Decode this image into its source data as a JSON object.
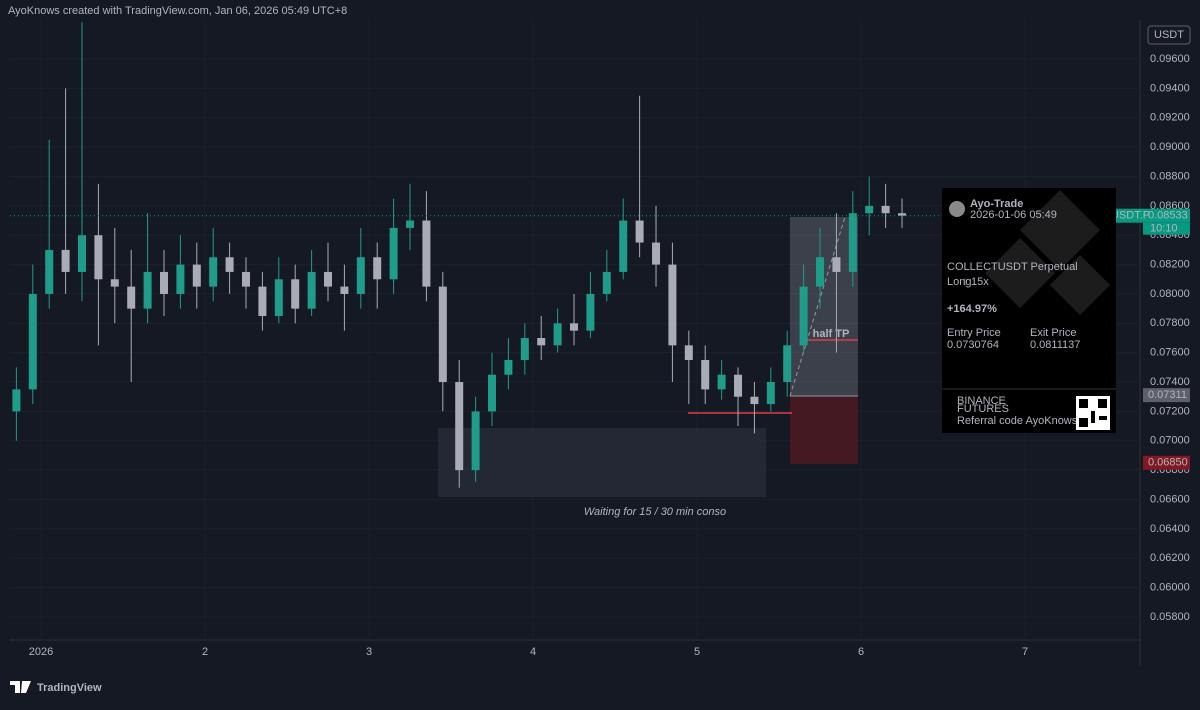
{
  "header": {
    "caption": "AyoKnows created with TradingView.com, Jan 06, 2026 05:49 UTC+8",
    "currency": "USDT"
  },
  "chart_data": {
    "type": "candlestick",
    "x": [
      0.85,
      0.95,
      1.05,
      1.15,
      1.25,
      1.35,
      1.45,
      1.55,
      1.65,
      1.75,
      1.85,
      1.95,
      2.05,
      2.15,
      2.25,
      2.35,
      2.45,
      2.55,
      2.65,
      2.75,
      2.85,
      2.95,
      3.05,
      3.15,
      3.25,
      3.35,
      3.45,
      3.55,
      3.65,
      3.75,
      3.85,
      3.95,
      4.05,
      4.15,
      4.25,
      4.35,
      4.45,
      4.55,
      4.65,
      4.75,
      4.85,
      4.95,
      5.05,
      5.15,
      5.25,
      5.35,
      5.45,
      5.55,
      5.65,
      5.75,
      5.85,
      5.95,
      6.05,
      6.15,
      6.25
    ],
    "open": [
      0.072,
      0.0735,
      0.08,
      0.083,
      0.0815,
      0.084,
      0.081,
      0.0805,
      0.079,
      0.0815,
      0.08,
      0.082,
      0.0805,
      0.0825,
      0.0815,
      0.0805,
      0.0785,
      0.081,
      0.079,
      0.0815,
      0.0805,
      0.08,
      0.0825,
      0.081,
      0.0845,
      0.085,
      0.0805,
      0.074,
      0.068,
      0.072,
      0.0745,
      0.0755,
      0.077,
      0.0765,
      0.078,
      0.0775,
      0.08,
      0.0815,
      0.085,
      0.0835,
      0.082,
      0.0765,
      0.0755,
      0.0735,
      0.0745,
      0.073,
      0.0725,
      0.074,
      0.0765,
      0.0805,
      0.0825,
      0.0815,
      0.0855,
      0.086,
      0.0855
    ],
    "high": [
      0.075,
      0.082,
      0.0905,
      0.094,
      0.0985,
      0.0875,
      0.0845,
      0.083,
      0.0855,
      0.083,
      0.084,
      0.0835,
      0.0845,
      0.0835,
      0.0825,
      0.0815,
      0.0825,
      0.082,
      0.083,
      0.0835,
      0.082,
      0.0845,
      0.0835,
      0.0865,
      0.0875,
      0.087,
      0.0815,
      0.0755,
      0.073,
      0.076,
      0.077,
      0.078,
      0.0785,
      0.079,
      0.08,
      0.0815,
      0.083,
      0.0865,
      0.0935,
      0.086,
      0.0835,
      0.0775,
      0.0765,
      0.0755,
      0.075,
      0.074,
      0.075,
      0.0775,
      0.082,
      0.0845,
      0.0855,
      0.087,
      0.088,
      0.0875,
      0.0865
    ],
    "low": [
      0.07,
      0.0725,
      0.079,
      0.08,
      0.0795,
      0.0765,
      0.078,
      0.074,
      0.078,
      0.0785,
      0.079,
      0.079,
      0.0795,
      0.08,
      0.079,
      0.0775,
      0.078,
      0.078,
      0.0785,
      0.0795,
      0.0775,
      0.079,
      0.079,
      0.08,
      0.083,
      0.0795,
      0.072,
      0.0668,
      0.0672,
      0.071,
      0.0735,
      0.0745,
      0.0755,
      0.076,
      0.0765,
      0.077,
      0.0795,
      0.081,
      0.0825,
      0.0805,
      0.074,
      0.0725,
      0.0725,
      0.0728,
      0.071,
      0.0705,
      0.072,
      0.073,
      0.076,
      0.079,
      0.076,
      0.0805,
      0.084,
      0.0845,
      0.0845
    ],
    "close": [
      0.0735,
      0.08,
      0.083,
      0.0815,
      0.084,
      0.081,
      0.0805,
      0.079,
      0.0815,
      0.08,
      0.082,
      0.0805,
      0.0825,
      0.0815,
      0.0805,
      0.0785,
      0.081,
      0.079,
      0.0815,
      0.0805,
      0.08,
      0.0825,
      0.081,
      0.0845,
      0.085,
      0.0805,
      0.074,
      0.068,
      0.072,
      0.0745,
      0.0755,
      0.077,
      0.0765,
      0.078,
      0.0775,
      0.08,
      0.0815,
      0.085,
      0.0835,
      0.082,
      0.0765,
      0.0755,
      0.0735,
      0.0745,
      0.073,
      0.0725,
      0.074,
      0.0765,
      0.0805,
      0.0825,
      0.0815,
      0.0855,
      0.086,
      0.0855,
      0.08533
    ],
    "up_color": "#1f9d8a",
    "down_color": "#a9acb6",
    "xlim": [
      0.811,
      7.701
    ],
    "xticks": [
      {
        "value": 1,
        "label": "2026"
      },
      2,
      3,
      4,
      5,
      6,
      7
    ],
    "ylim": [
      0.05643,
      0.09866
    ],
    "yticks": [
      {
        "value": 0.058,
        "label": "0.05800"
      },
      {
        "value": 0.06,
        "label": "0.06000"
      },
      {
        "value": 0.062,
        "label": "0.06200"
      },
      {
        "value": 0.064,
        "label": "0.06400"
      },
      {
        "value": 0.066,
        "label": "0.06600"
      },
      {
        "value": 0.068,
        "label": "0.06800"
      },
      {
        "value": 0.07,
        "label": "0.07000"
      },
      {
        "value": 0.072,
        "label": "0.07200"
      },
      {
        "value": 0.074,
        "label": "0.07400"
      },
      {
        "value": 0.076,
        "label": "0.07600"
      },
      {
        "value": 0.078,
        "label": "0.07800"
      },
      {
        "value": 0.08,
        "label": "0.08000"
      },
      {
        "value": 0.082,
        "label": "0.08200"
      },
      {
        "value": 0.084,
        "label": "0.08400"
      },
      {
        "value": 0.086,
        "label": "0.08600"
      },
      {
        "value": 0.088,
        "label": "0.08800"
      },
      {
        "value": 0.09,
        "label": "0.09000"
      },
      {
        "value": 0.092,
        "label": "0.09200"
      },
      {
        "value": 0.094,
        "label": "0.09400"
      },
      {
        "value": 0.096,
        "label": "0.09600"
      }
    ],
    "grid": true,
    "price_labels": [
      {
        "value": 0.08533,
        "label": "0.08533",
        "color": "#089981"
      },
      {
        "value": 0.07311,
        "label": "0.07311",
        "color": "#5d606b"
      },
      {
        "value": 0.0685,
        "label": "0.06850",
        "color": "#801922"
      }
    ],
    "symbol_tag": "USDT.P",
    "countdown": "10:10",
    "annotations": [
      "Waiting for 15 / 30 min conso",
      "half TP"
    ]
  },
  "pnl_card": {
    "user": "Ayo-Trade",
    "time": "2026-01-06 05:49",
    "symbol": "COLLECTUSDT Perpetual",
    "side": "Long",
    "leverage": "15x",
    "roi": "+164.97%",
    "entry_label": "Entry Price",
    "entry": "0.0730764",
    "exit_label": "Exit Price",
    "exit": "0.0811137",
    "brand_top": "BINANCE",
    "brand": "FUTURES",
    "referral": "Referral code AyoKnows"
  },
  "logo": "TradingView"
}
